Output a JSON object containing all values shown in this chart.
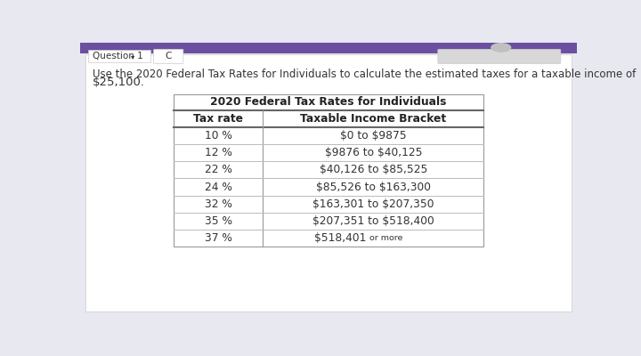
{
  "page_bg": "#e8e8f0",
  "header_bg": "#6b4fa0",
  "content_bg": "#ffffff",
  "question_label": "Question 1",
  "question_letter": "C",
  "intro_text_line1": "Use the 2020 Federal Tax Rates for Individuals to calculate the estimated taxes for a taxable income of",
  "intro_text_line2": "$25,100.",
  "table_title": "2020 Federal Tax Rates for Individuals",
  "col1_header": "Tax rate",
  "col2_header": "Taxable Income Bracket",
  "rows": [
    [
      "10 %",
      "\\$0 to \\$9875"
    ],
    [
      "12 %",
      "\\$9876 to \\$40,125"
    ],
    [
      "22 %",
      "\\$40,126 to \\$85,525"
    ],
    [
      "24 %",
      "\\$85,526 to \\$163,300"
    ],
    [
      "32 %",
      "\\$163,301 to \\$207,350"
    ],
    [
      "35 %",
      "\\$207,351 to \\$518,400"
    ],
    [
      "37 %",
      "\\$518,401 or more"
    ]
  ],
  "table_border_color": "#999999",
  "header_line_color": "#666666",
  "row_line_color": "#bbbbbb",
  "text_color": "#333333",
  "title_color": "#222222",
  "intro_font_size": 8.5,
  "table_title_font_size": 8.8,
  "col_header_font_size": 8.8,
  "row_font_size": 8.8
}
